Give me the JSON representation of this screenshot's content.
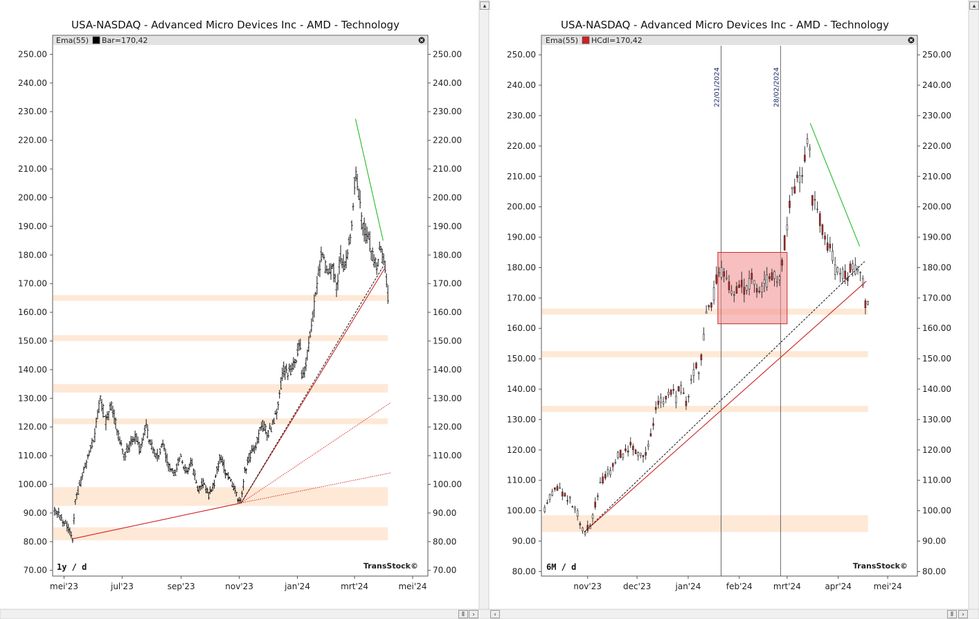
{
  "chart_data": [
    {
      "type": "candlestick",
      "title": "USA-NASDAQ - Advanced Micro Devices Inc - AMD - Technology",
      "indicator_label": "Ema(55)",
      "series_label": "Bar=170,42",
      "legend_color": "#000000",
      "period_label": "1y / d",
      "watermark": "TransStock©",
      "ylim": [
        68,
        253
      ],
      "y_ticks": [
        "70.00",
        "80.00",
        "90.00",
        "100.00",
        "110.00",
        "120.00",
        "130.00",
        "140.00",
        "150.00",
        "160.00",
        "170.00",
        "180.00",
        "190.00",
        "200.00",
        "210.00",
        "220.00",
        "230.00",
        "240.00",
        "250.00"
      ],
      "x_ticks": [
        {
          "label": "mei'23",
          "t": 0.0
        },
        {
          "label": "jul'23",
          "t": 61
        },
        {
          "label": "sep'23",
          "t": 123
        },
        {
          "label": "nov'23",
          "t": 184
        },
        {
          "label": "jan'24",
          "t": 245
        },
        {
          "label": "mrt'24",
          "t": 305
        },
        {
          "label": "mei'24",
          "t": 366
        }
      ],
      "xlim": [
        -12,
        382
      ],
      "bar_style": "ohlc",
      "path": [
        [
          -10,
          92
        ],
        [
          -4,
          89
        ],
        [
          2,
          86
        ],
        [
          6,
          83
        ],
        [
          9,
          81
        ],
        [
          12,
          95
        ],
        [
          18,
          101
        ],
        [
          25,
          110
        ],
        [
          32,
          117
        ],
        [
          38,
          130
        ],
        [
          44,
          122
        ],
        [
          50,
          128
        ],
        [
          56,
          119
        ],
        [
          62,
          110
        ],
        [
          68,
          113
        ],
        [
          74,
          117
        ],
        [
          80,
          112
        ],
        [
          86,
          120
        ],
        [
          92,
          113
        ],
        [
          98,
          110
        ],
        [
          104,
          114
        ],
        [
          110,
          106
        ],
        [
          116,
          103
        ],
        [
          122,
          110
        ],
        [
          128,
          104
        ],
        [
          134,
          108
        ],
        [
          140,
          98
        ],
        [
          146,
          100
        ],
        [
          152,
          96
        ],
        [
          158,
          101
        ],
        [
          164,
          110
        ],
        [
          170,
          104
        ],
        [
          176,
          100
        ],
        [
          180,
          97
        ],
        [
          184,
          94
        ],
        [
          186,
          93.5
        ],
        [
          190,
          105
        ],
        [
          196,
          111
        ],
        [
          202,
          114
        ],
        [
          208,
          121
        ],
        [
          214,
          118
        ],
        [
          218,
          120
        ],
        [
          224,
          127
        ],
        [
          230,
          140
        ],
        [
          236,
          139
        ],
        [
          242,
          142
        ],
        [
          248,
          150
        ],
        [
          250,
          135
        ],
        [
          255,
          145
        ],
        [
          258,
          151
        ],
        [
          262,
          160
        ],
        [
          266,
          170
        ],
        [
          270,
          180
        ],
        [
          274,
          176
        ],
        [
          278,
          172
        ],
        [
          282,
          177
        ],
        [
          286,
          168
        ],
        [
          290,
          180
        ],
        [
          294,
          175
        ],
        [
          298,
          180
        ],
        [
          302,
          192
        ],
        [
          306,
          210
        ],
        [
          308,
          205
        ],
        [
          312,
          195
        ],
        [
          316,
          188
        ],
        [
          320,
          185
        ],
        [
          324,
          180
        ],
        [
          328,
          176
        ],
        [
          332,
          182
        ],
        [
          336,
          178
        ],
        [
          338,
          172
        ],
        [
          340,
          166
        ]
      ],
      "zones": [
        [
          80.5,
          85
        ],
        [
          92.5,
          99
        ],
        [
          121,
          123
        ],
        [
          132,
          135
        ],
        [
          150,
          152
        ],
        [
          164,
          166
        ]
      ],
      "zone_xmax": 340,
      "trend_lines": [
        {
          "x": [
            9,
            186
          ],
          "y": [
            81,
            93.5
          ],
          "color": "#cc2222",
          "style": "solid"
        },
        {
          "x": [
            186,
            337
          ],
          "y": [
            93.5,
            175.5
          ],
          "color": "#cc2222",
          "style": "solid"
        },
        {
          "x": [
            186,
            335
          ],
          "y": [
            93.5,
            176
          ],
          "color": "#222222",
          "style": "dashed"
        },
        {
          "x": [
            186,
            343
          ],
          "y": [
            93.5,
            128.5
          ],
          "color": "#cc2222",
          "style": "dotted"
        },
        {
          "x": [
            186,
            343
          ],
          "y": [
            93.5,
            104
          ],
          "color": "#cc2222",
          "style": "dotted"
        },
        {
          "x": [
            306,
            335
          ],
          "y": [
            227.5,
            185
          ],
          "color": "#22bb22",
          "style": "solid"
        }
      ],
      "vlines": []
    },
    {
      "type": "candlestick",
      "title": "USA-NASDAQ - Advanced Micro Devices Inc - AMD - Technology",
      "indicator_label": "Ema(55)",
      "series_label": "HCdl=170,42",
      "legend_color": "#cc2222",
      "period_label": "6M / d",
      "watermark": "TransStock©",
      "ylim": [
        78.5,
        253
      ],
      "y_ticks": [
        "80.00",
        "90.00",
        "100.00",
        "110.00",
        "120.00",
        "130.00",
        "140.00",
        "150.00",
        "160.00",
        "170.00",
        "180.00",
        "190.00",
        "200.00",
        "210.00",
        "220.00",
        "230.00",
        "240.00",
        "250.00"
      ],
      "x_ticks": [
        {
          "label": "nov'23",
          "t": 0
        },
        {
          "label": "dec'23",
          "t": 30
        },
        {
          "label": "jan'24",
          "t": 61
        },
        {
          "label": "feb'24",
          "t": 92
        },
        {
          "label": "mrt'24",
          "t": 121
        },
        {
          "label": "apr'24",
          "t": 152
        },
        {
          "label": "mei'24",
          "t": 182
        }
      ],
      "xlim": [
        -28,
        200
      ],
      "bar_style": "candle",
      "path": [
        [
          -26,
          101
        ],
        [
          -22,
          106
        ],
        [
          -18,
          108
        ],
        [
          -14,
          105
        ],
        [
          -10,
          103
        ],
        [
          -6,
          99
        ],
        [
          -4,
          95
        ],
        [
          -2,
          93
        ],
        [
          2,
          95
        ],
        [
          6,
          106
        ],
        [
          10,
          111
        ],
        [
          14,
          113
        ],
        [
          18,
          118
        ],
        [
          22,
          119
        ],
        [
          26,
          121
        ],
        [
          30,
          120
        ],
        [
          34,
          117
        ],
        [
          38,
          125
        ],
        [
          42,
          134
        ],
        [
          46,
          137
        ],
        [
          50,
          140
        ],
        [
          54,
          137
        ],
        [
          56,
          141
        ],
        [
          60,
          135
        ],
        [
          62,
          140
        ],
        [
          66,
          148
        ],
        [
          68,
          145
        ],
        [
          70,
          155
        ],
        [
          72,
          165
        ],
        [
          76,
          170
        ],
        [
          80,
          180
        ],
        [
          84,
          176
        ],
        [
          88,
          172
        ],
        [
          92,
          175
        ],
        [
          96,
          172
        ],
        [
          100,
          177
        ],
        [
          104,
          170
        ],
        [
          108,
          175
        ],
        [
          112,
          178
        ],
        [
          116,
          176
        ],
        [
          120,
          190
        ],
        [
          124,
          205
        ],
        [
          128,
          210
        ],
        [
          130,
          208
        ],
        [
          134,
          227
        ],
        [
          136,
          202
        ],
        [
          140,
          198
        ],
        [
          144,
          190
        ],
        [
          148,
          185
        ],
        [
          150,
          180
        ],
        [
          154,
          178
        ],
        [
          158,
          176
        ],
        [
          160,
          181
        ],
        [
          164,
          178
        ],
        [
          166,
          182
        ],
        [
          168,
          168
        ],
        [
          170,
          167
        ]
      ],
      "zones": [
        [
          93,
          98.5
        ],
        [
          132.5,
          134.5
        ],
        [
          150.5,
          152.5
        ],
        [
          164.5,
          166.5
        ]
      ],
      "zone_xmax": 170,
      "box": {
        "x": [
          79,
          121
        ],
        "y": [
          161.5,
          185
        ]
      },
      "trend_lines": [
        {
          "x": [
            -2,
            169
          ],
          "y": [
            93,
            175.5
          ],
          "color": "#cc2222",
          "style": "solid"
        },
        {
          "x": [
            -2,
            168
          ],
          "y": [
            93,
            182
          ],
          "color": "#222222",
          "style": "dashed"
        },
        {
          "x": [
            135,
            165
          ],
          "y": [
            227.5,
            187
          ],
          "color": "#22bb22",
          "style": "solid"
        }
      ],
      "vlines": [
        {
          "t": 81,
          "label": "22/01/2024"
        },
        {
          "t": 117,
          "label": "28/02/2024"
        }
      ]
    }
  ]
}
